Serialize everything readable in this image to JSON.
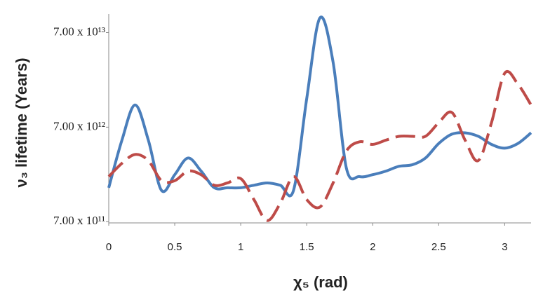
{
  "chart_data": {
    "type": "line",
    "xlabel": "χ₅ (rad)",
    "ylabel": "ν₃ lifetime (Years)",
    "x": [
      0,
      0.1,
      0.2,
      0.3,
      0.4,
      0.5,
      0.6,
      0.7,
      0.8,
      0.9,
      1.0,
      1.1,
      1.2,
      1.3,
      1.4,
      1.5,
      1.6,
      1.7,
      1.8,
      1.9,
      2.0,
      2.1,
      2.2,
      2.3,
      2.4,
      2.5,
      2.6,
      2.7,
      2.8,
      2.9,
      3.0,
      3.1,
      3.2
    ],
    "series": [
      {
        "color": "#4a7ebb",
        "dashed": false,
        "values": [
          1600000000000.0,
          5100000000000.0,
          12000000000000.0,
          5100000000000.0,
          1500000000000.0,
          2200000000000.0,
          3300000000000.0,
          2400000000000.0,
          1600000000000.0,
          1600000000000.0,
          1600000000000.0,
          1700000000000.0,
          1800000000000.0,
          1700000000000.0,
          1500000000000.0,
          14000000000000.0,
          100000000000000.0,
          34000000000000.0,
          2600000000000.0,
          2100000000000.0,
          2200000000000.0,
          2400000000000.0,
          2700000000000.0,
          2800000000000.0,
          3300000000000.0,
          4700000000000.0,
          5900000000000.0,
          6100000000000.0,
          5600000000000.0,
          4600000000000.0,
          4200000000000.0,
          4700000000000.0,
          6100000000000.0
        ]
      },
      {
        "color": "#be4b48",
        "dashed": true,
        "values": [
          2100000000000.0,
          2900000000000.0,
          3600000000000.0,
          3100000000000.0,
          1900000000000.0,
          1900000000000.0,
          2400000000000.0,
          2200000000000.0,
          1700000000000.0,
          1800000000000.0,
          2000000000000.0,
          1200000000000.0,
          720000000000.0,
          1100000000000.0,
          2100000000000.0,
          1200000000000.0,
          1000000000000.0,
          1800000000000.0,
          3900000000000.0,
          4900000000000.0,
          4600000000000.0,
          5100000000000.0,
          5600000000000.0,
          5600000000000.0,
          5600000000000.0,
          7800000000000.0,
          10000000000000.0,
          5100000000000.0,
          3100000000000.0,
          7800000000000.0,
          26000000000000.0,
          20000000000000.0,
          12000000000000.0
        ]
      }
    ],
    "xlim": [
      0,
      3.2
    ],
    "xticks": [
      0,
      0.5,
      1,
      1.5,
      2,
      2.5,
      3
    ],
    "ylim": [
      680000000000.0,
      110000000000000.0
    ],
    "ylog": true,
    "yticks": [
      {
        "value": 700000000000.0,
        "label": "7.00 x 10¹¹"
      },
      {
        "value": 7000000000000.0,
        "label": "7.00 x 10¹²"
      },
      {
        "value": 70000000000000.0,
        "label": "7.00 x 10¹³"
      }
    ],
    "grid": false
  }
}
